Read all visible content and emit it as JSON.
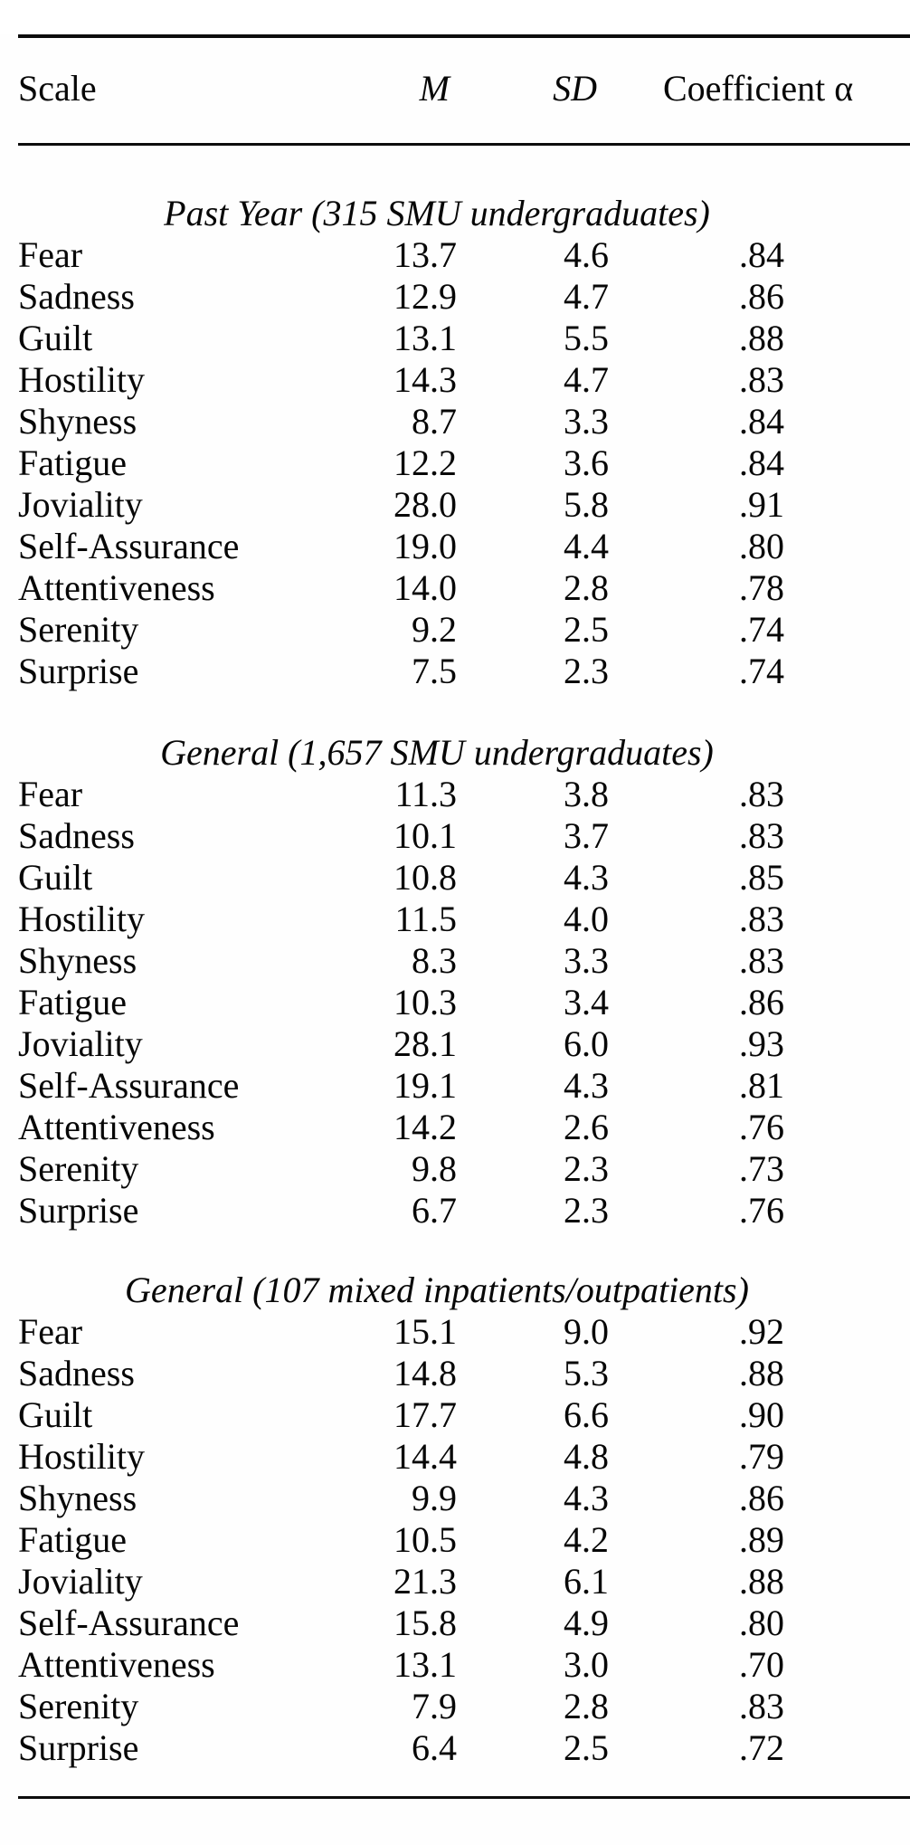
{
  "table": {
    "header": {
      "scale": "Scale",
      "m": "M",
      "sd": "SD",
      "alpha": "Coefficient α"
    },
    "sections": [
      {
        "title": "Past Year (315 SMU undergraduates)",
        "rows": [
          {
            "scale": "Fear",
            "m": "13.7",
            "sd": "4.6",
            "alpha": ".84"
          },
          {
            "scale": "Sadness",
            "m": "12.9",
            "sd": "4.7",
            "alpha": ".86"
          },
          {
            "scale": "Guilt",
            "m": "13.1",
            "sd": "5.5",
            "alpha": ".88"
          },
          {
            "scale": "Hostility",
            "m": "14.3",
            "sd": "4.7",
            "alpha": ".83"
          },
          {
            "scale": "Shyness",
            "m": "8.7",
            "sd": "3.3",
            "alpha": ".84"
          },
          {
            "scale": "Fatigue",
            "m": "12.2",
            "sd": "3.6",
            "alpha": ".84"
          },
          {
            "scale": "Joviality",
            "m": "28.0",
            "sd": "5.8",
            "alpha": ".91"
          },
          {
            "scale": "Self-Assurance",
            "m": "19.0",
            "sd": "4.4",
            "alpha": ".80"
          },
          {
            "scale": "Attentiveness",
            "m": "14.0",
            "sd": "2.8",
            "alpha": ".78"
          },
          {
            "scale": "Serenity",
            "m": "9.2",
            "sd": "2.5",
            "alpha": ".74"
          },
          {
            "scale": "Surprise",
            "m": "7.5",
            "sd": "2.3",
            "alpha": ".74"
          }
        ]
      },
      {
        "title": "General (1,657 SMU undergraduates)",
        "rows": [
          {
            "scale": "Fear",
            "m": "11.3",
            "sd": "3.8",
            "alpha": ".83"
          },
          {
            "scale": "Sadness",
            "m": "10.1",
            "sd": "3.7",
            "alpha": ".83"
          },
          {
            "scale": "Guilt",
            "m": "10.8",
            "sd": "4.3",
            "alpha": ".85"
          },
          {
            "scale": "Hostility",
            "m": "11.5",
            "sd": "4.0",
            "alpha": ".83"
          },
          {
            "scale": "Shyness",
            "m": "8.3",
            "sd": "3.3",
            "alpha": ".83"
          },
          {
            "scale": "Fatigue",
            "m": "10.3",
            "sd": "3.4",
            "alpha": ".86"
          },
          {
            "scale": "Joviality",
            "m": "28.1",
            "sd": "6.0",
            "alpha": ".93"
          },
          {
            "scale": "Self-Assurance",
            "m": "19.1",
            "sd": "4.3",
            "alpha": ".81"
          },
          {
            "scale": "Attentiveness",
            "m": "14.2",
            "sd": "2.6",
            "alpha": ".76"
          },
          {
            "scale": "Serenity",
            "m": "9.8",
            "sd": "2.3",
            "alpha": ".73"
          },
          {
            "scale": "Surprise",
            "m": "6.7",
            "sd": "2.3",
            "alpha": ".76"
          }
        ]
      },
      {
        "title": "General (107 mixed inpatients/outpatients)",
        "rows": [
          {
            "scale": "Fear",
            "m": "15.1",
            "sd": "9.0",
            "alpha": ".92"
          },
          {
            "scale": "Sadness",
            "m": "14.8",
            "sd": "5.3",
            "alpha": ".88"
          },
          {
            "scale": "Guilt",
            "m": "17.7",
            "sd": "6.6",
            "alpha": ".90"
          },
          {
            "scale": "Hostility",
            "m": "14.4",
            "sd": "4.8",
            "alpha": ".79"
          },
          {
            "scale": "Shyness",
            "m": "9.9",
            "sd": "4.3",
            "alpha": ".86"
          },
          {
            "scale": "Fatigue",
            "m": "10.5",
            "sd": "4.2",
            "alpha": ".89"
          },
          {
            "scale": "Joviality",
            "m": "21.3",
            "sd": "6.1",
            "alpha": ".88"
          },
          {
            "scale": "Self-Assurance",
            "m": "15.8",
            "sd": "4.9",
            "alpha": ".80"
          },
          {
            "scale": "Attentiveness",
            "m": "13.1",
            "sd": "3.0",
            "alpha": ".70"
          },
          {
            "scale": "Serenity",
            "m": "7.9",
            "sd": "2.8",
            "alpha": ".83"
          },
          {
            "scale": "Surprise",
            "m": "6.4",
            "sd": "2.5",
            "alpha": ".72"
          }
        ]
      }
    ]
  }
}
